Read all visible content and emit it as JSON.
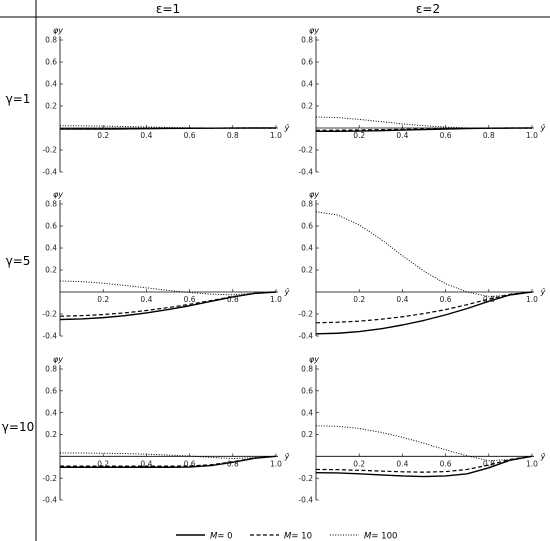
{
  "figure": {
    "column_headers": [
      "ε=1",
      "ε=2"
    ],
    "row_headers": [
      "γ=1",
      "γ=5",
      "γ=10"
    ],
    "legend": [
      {
        "label": "M= 0",
        "italic_part": "M",
        "style": "solid"
      },
      {
        "label": "M= 10",
        "italic_part": "M",
        "style": "dashed"
      },
      {
        "label": "M= 100",
        "italic_part": "M",
        "style": "dotted"
      }
    ]
  },
  "chart_data": [
    {
      "type": "line",
      "row": 0,
      "col": 0,
      "xlabel": "ȳ",
      "ylabel": "φy",
      "xlim": [
        0,
        1
      ],
      "ylim": [
        -0.4,
        0.8
      ],
      "xticks": [
        "0.2",
        "0.4",
        "0.6",
        "0.8",
        "1.0"
      ],
      "yticks": [
        "-0.4",
        "-0.2",
        "0.2",
        "0.4",
        "0.6",
        "0.8"
      ],
      "x": [
        0,
        0.1,
        0.2,
        0.3,
        0.4,
        0.5,
        0.6,
        0.7,
        0.8,
        0.9,
        1.0
      ],
      "series": [
        {
          "name": "M= 0",
          "style": "solid",
          "values": [
            -0.01,
            -0.01,
            -0.01,
            -0.008,
            -0.006,
            -0.004,
            -0.003,
            -0.002,
            -0.001,
            0,
            0
          ]
        },
        {
          "name": "M= 10",
          "style": "dashed",
          "values": [
            -0.007,
            -0.007,
            -0.006,
            -0.005,
            -0.004,
            -0.003,
            -0.002,
            -0.001,
            0,
            0,
            0
          ]
        },
        {
          "name": "M= 100",
          "style": "dotted",
          "values": [
            0.02,
            0.02,
            0.017,
            0.013,
            0.009,
            0.005,
            0.002,
            0,
            -0.002,
            -0.001,
            0
          ]
        }
      ]
    },
    {
      "type": "line",
      "row": 0,
      "col": 1,
      "xlabel": "ȳ",
      "ylabel": "φy",
      "xlim": [
        0,
        1
      ],
      "ylim": [
        -0.4,
        0.8
      ],
      "xticks": [
        "0.2",
        "0.4",
        "0.6",
        "0.8",
        "1.0"
      ],
      "yticks": [
        "-0.4",
        "-0.2",
        "0.2",
        "0.4",
        "0.6",
        "0.8"
      ],
      "x": [
        0,
        0.1,
        0.2,
        0.3,
        0.4,
        0.5,
        0.6,
        0.7,
        0.8,
        0.9,
        1.0
      ],
      "series": [
        {
          "name": "M= 0",
          "style": "solid",
          "values": [
            -0.03,
            -0.03,
            -0.028,
            -0.024,
            -0.019,
            -0.014,
            -0.009,
            -0.005,
            -0.002,
            -0.001,
            0
          ]
        },
        {
          "name": "M= 10",
          "style": "dashed",
          "values": [
            -0.02,
            -0.02,
            -0.018,
            -0.015,
            -0.012,
            -0.009,
            -0.006,
            -0.003,
            -0.001,
            0,
            0
          ]
        },
        {
          "name": "M= 100",
          "style": "dotted",
          "values": [
            0.1,
            0.095,
            0.078,
            0.058,
            0.038,
            0.021,
            0.008,
            0,
            -0.003,
            -0.002,
            0
          ]
        }
      ]
    },
    {
      "type": "line",
      "row": 1,
      "col": 0,
      "xlabel": "ȳ",
      "ylabel": "φy",
      "xlim": [
        0,
        1
      ],
      "ylim": [
        -0.4,
        0.8
      ],
      "xticks": [
        "0.2",
        "0.4",
        "0.6",
        "0.8",
        "1.0"
      ],
      "yticks": [
        "-0.4",
        "-0.2",
        "0.2",
        "0.4",
        "0.6",
        "0.8"
      ],
      "x": [
        0,
        0.1,
        0.2,
        0.3,
        0.4,
        0.5,
        0.6,
        0.7,
        0.8,
        0.9,
        1.0
      ],
      "series": [
        {
          "name": "M= 0",
          "style": "solid",
          "values": [
            -0.25,
            -0.245,
            -0.233,
            -0.215,
            -0.19,
            -0.16,
            -0.125,
            -0.085,
            -0.045,
            -0.013,
            0
          ]
        },
        {
          "name": "M= 10",
          "style": "dashed",
          "values": [
            -0.22,
            -0.215,
            -0.205,
            -0.19,
            -0.168,
            -0.142,
            -0.112,
            -0.078,
            -0.042,
            -0.012,
            0
          ]
        },
        {
          "name": "M= 100",
          "style": "dotted",
          "values": [
            0.1,
            0.095,
            0.08,
            0.06,
            0.038,
            0.015,
            -0.005,
            -0.02,
            -0.025,
            -0.012,
            0
          ]
        }
      ]
    },
    {
      "type": "line",
      "row": 1,
      "col": 1,
      "xlabel": "ȳ",
      "ylabel": "φy",
      "xlim": [
        0,
        1
      ],
      "ylim": [
        -0.4,
        0.8
      ],
      "xticks": [
        "0.2",
        "0.4",
        "0.6",
        "0.8",
        "1.0"
      ],
      "yticks": [
        "-0.4",
        "-0.2",
        "0.2",
        "0.4",
        "0.6",
        "0.8"
      ],
      "x": [
        0,
        0.1,
        0.2,
        0.3,
        0.4,
        0.5,
        0.6,
        0.7,
        0.8,
        0.9,
        1.0
      ],
      "series": [
        {
          "name": "M= 0",
          "style": "solid",
          "values": [
            -0.38,
            -0.375,
            -0.36,
            -0.335,
            -0.3,
            -0.258,
            -0.208,
            -0.15,
            -0.085,
            -0.025,
            0
          ]
        },
        {
          "name": "M= 10",
          "style": "dashed",
          "values": [
            -0.28,
            -0.275,
            -0.265,
            -0.248,
            -0.225,
            -0.196,
            -0.16,
            -0.115,
            -0.065,
            -0.02,
            0
          ]
        },
        {
          "name": "M= 100",
          "style": "dotted",
          "values": [
            0.73,
            0.7,
            0.61,
            0.48,
            0.33,
            0.19,
            0.075,
            0,
            -0.04,
            -0.03,
            0
          ]
        }
      ]
    },
    {
      "type": "line",
      "row": 2,
      "col": 0,
      "xlabel": "ȳ",
      "ylabel": "φy",
      "xlim": [
        0,
        1
      ],
      "ylim": [
        -0.4,
        0.8
      ],
      "xticks": [
        "0.2",
        "0.4",
        "0.6",
        "0.8",
        "1.0"
      ],
      "yticks": [
        "-0.4",
        "-0.2",
        "0.2",
        "0.4",
        "0.6",
        "0.8"
      ],
      "x": [
        0,
        0.1,
        0.2,
        0.3,
        0.4,
        0.5,
        0.6,
        0.7,
        0.8,
        0.9,
        1.0
      ],
      "series": [
        {
          "name": "M= 0",
          "style": "solid",
          "values": [
            -0.1,
            -0.1,
            -0.1,
            -0.1,
            -0.1,
            -0.1,
            -0.098,
            -0.085,
            -0.055,
            -0.018,
            0
          ]
        },
        {
          "name": "M= 10",
          "style": "dashed",
          "values": [
            -0.09,
            -0.09,
            -0.09,
            -0.09,
            -0.09,
            -0.09,
            -0.088,
            -0.077,
            -0.05,
            -0.016,
            0
          ]
        },
        {
          "name": "M= 100",
          "style": "dotted",
          "values": [
            0.03,
            0.03,
            0.028,
            0.025,
            0.02,
            0.012,
            0.003,
            -0.01,
            -0.02,
            -0.012,
            0
          ]
        }
      ]
    },
    {
      "type": "line",
      "row": 2,
      "col": 1,
      "xlabel": "ȳ",
      "ylabel": "φy",
      "xlim": [
        0,
        1
      ],
      "ylim": [
        -0.4,
        0.8
      ],
      "xticks": [
        "0.2",
        "0.4",
        "0.6",
        "0.8",
        "1.0"
      ],
      "yticks": [
        "-0.4",
        "-0.2",
        "0.2",
        "0.4",
        "0.6",
        "0.8"
      ],
      "x": [
        0,
        0.1,
        0.2,
        0.3,
        0.4,
        0.5,
        0.6,
        0.7,
        0.8,
        0.9,
        1.0
      ],
      "series": [
        {
          "name": "M= 0",
          "style": "solid",
          "values": [
            -0.15,
            -0.152,
            -0.16,
            -0.17,
            -0.18,
            -0.185,
            -0.18,
            -0.16,
            -0.105,
            -0.035,
            0
          ]
        },
        {
          "name": "M= 10",
          "style": "dashed",
          "values": [
            -0.12,
            -0.122,
            -0.128,
            -0.135,
            -0.142,
            -0.145,
            -0.14,
            -0.12,
            -0.08,
            -0.028,
            0
          ]
        },
        {
          "name": "M= 100",
          "style": "dotted",
          "values": [
            0.28,
            0.275,
            0.255,
            0.22,
            0.175,
            0.12,
            0.06,
            0.005,
            -0.04,
            -0.03,
            0
          ]
        }
      ]
    }
  ]
}
